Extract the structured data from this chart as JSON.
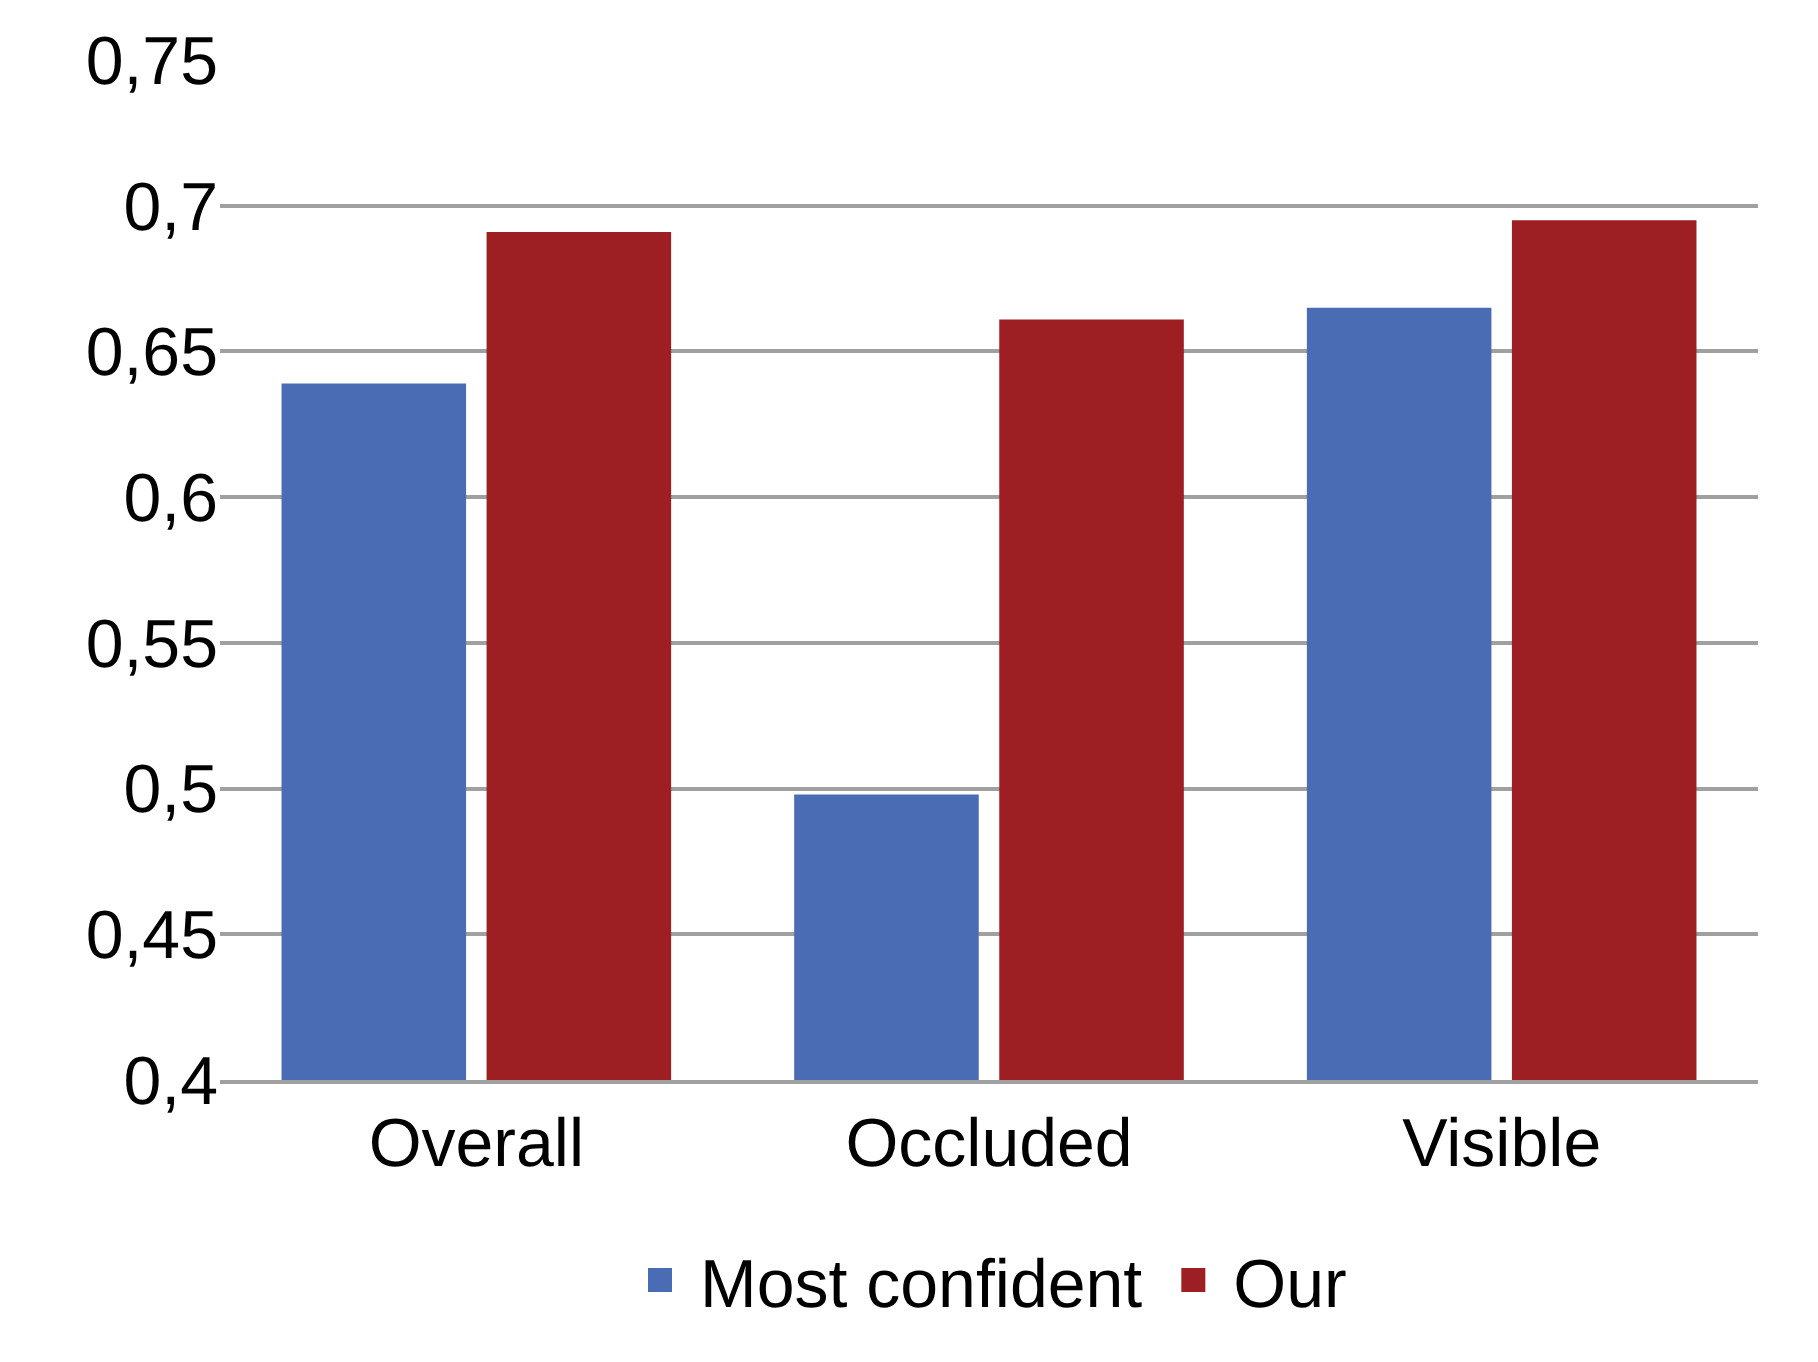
{
  "chart_data": {
    "type": "bar",
    "categories": [
      "Overall",
      "Occluded",
      "Visible"
    ],
    "series": [
      {
        "name": "Most confident",
        "color": "#4a6cb5",
        "values": [
          0.639,
          0.498,
          0.665
        ]
      },
      {
        "name": "Our",
        "color": "#9e1f23",
        "values": [
          0.691,
          0.661,
          0.695
        ]
      }
    ],
    "ylim": [
      0.4,
      0.75
    ],
    "yticks": [
      {
        "value": 0.4,
        "label": "0,4"
      },
      {
        "value": 0.45,
        "label": "0,45"
      },
      {
        "value": 0.5,
        "label": "0,5"
      },
      {
        "value": 0.55,
        "label": "0,55"
      },
      {
        "value": 0.6,
        "label": "0,6"
      },
      {
        "value": 0.65,
        "label": "0,65"
      },
      {
        "value": 0.7,
        "label": "0,7"
      },
      {
        "value": 0.75,
        "label": "0,75"
      }
    ],
    "grid": "y",
    "legend": "bottom"
  }
}
